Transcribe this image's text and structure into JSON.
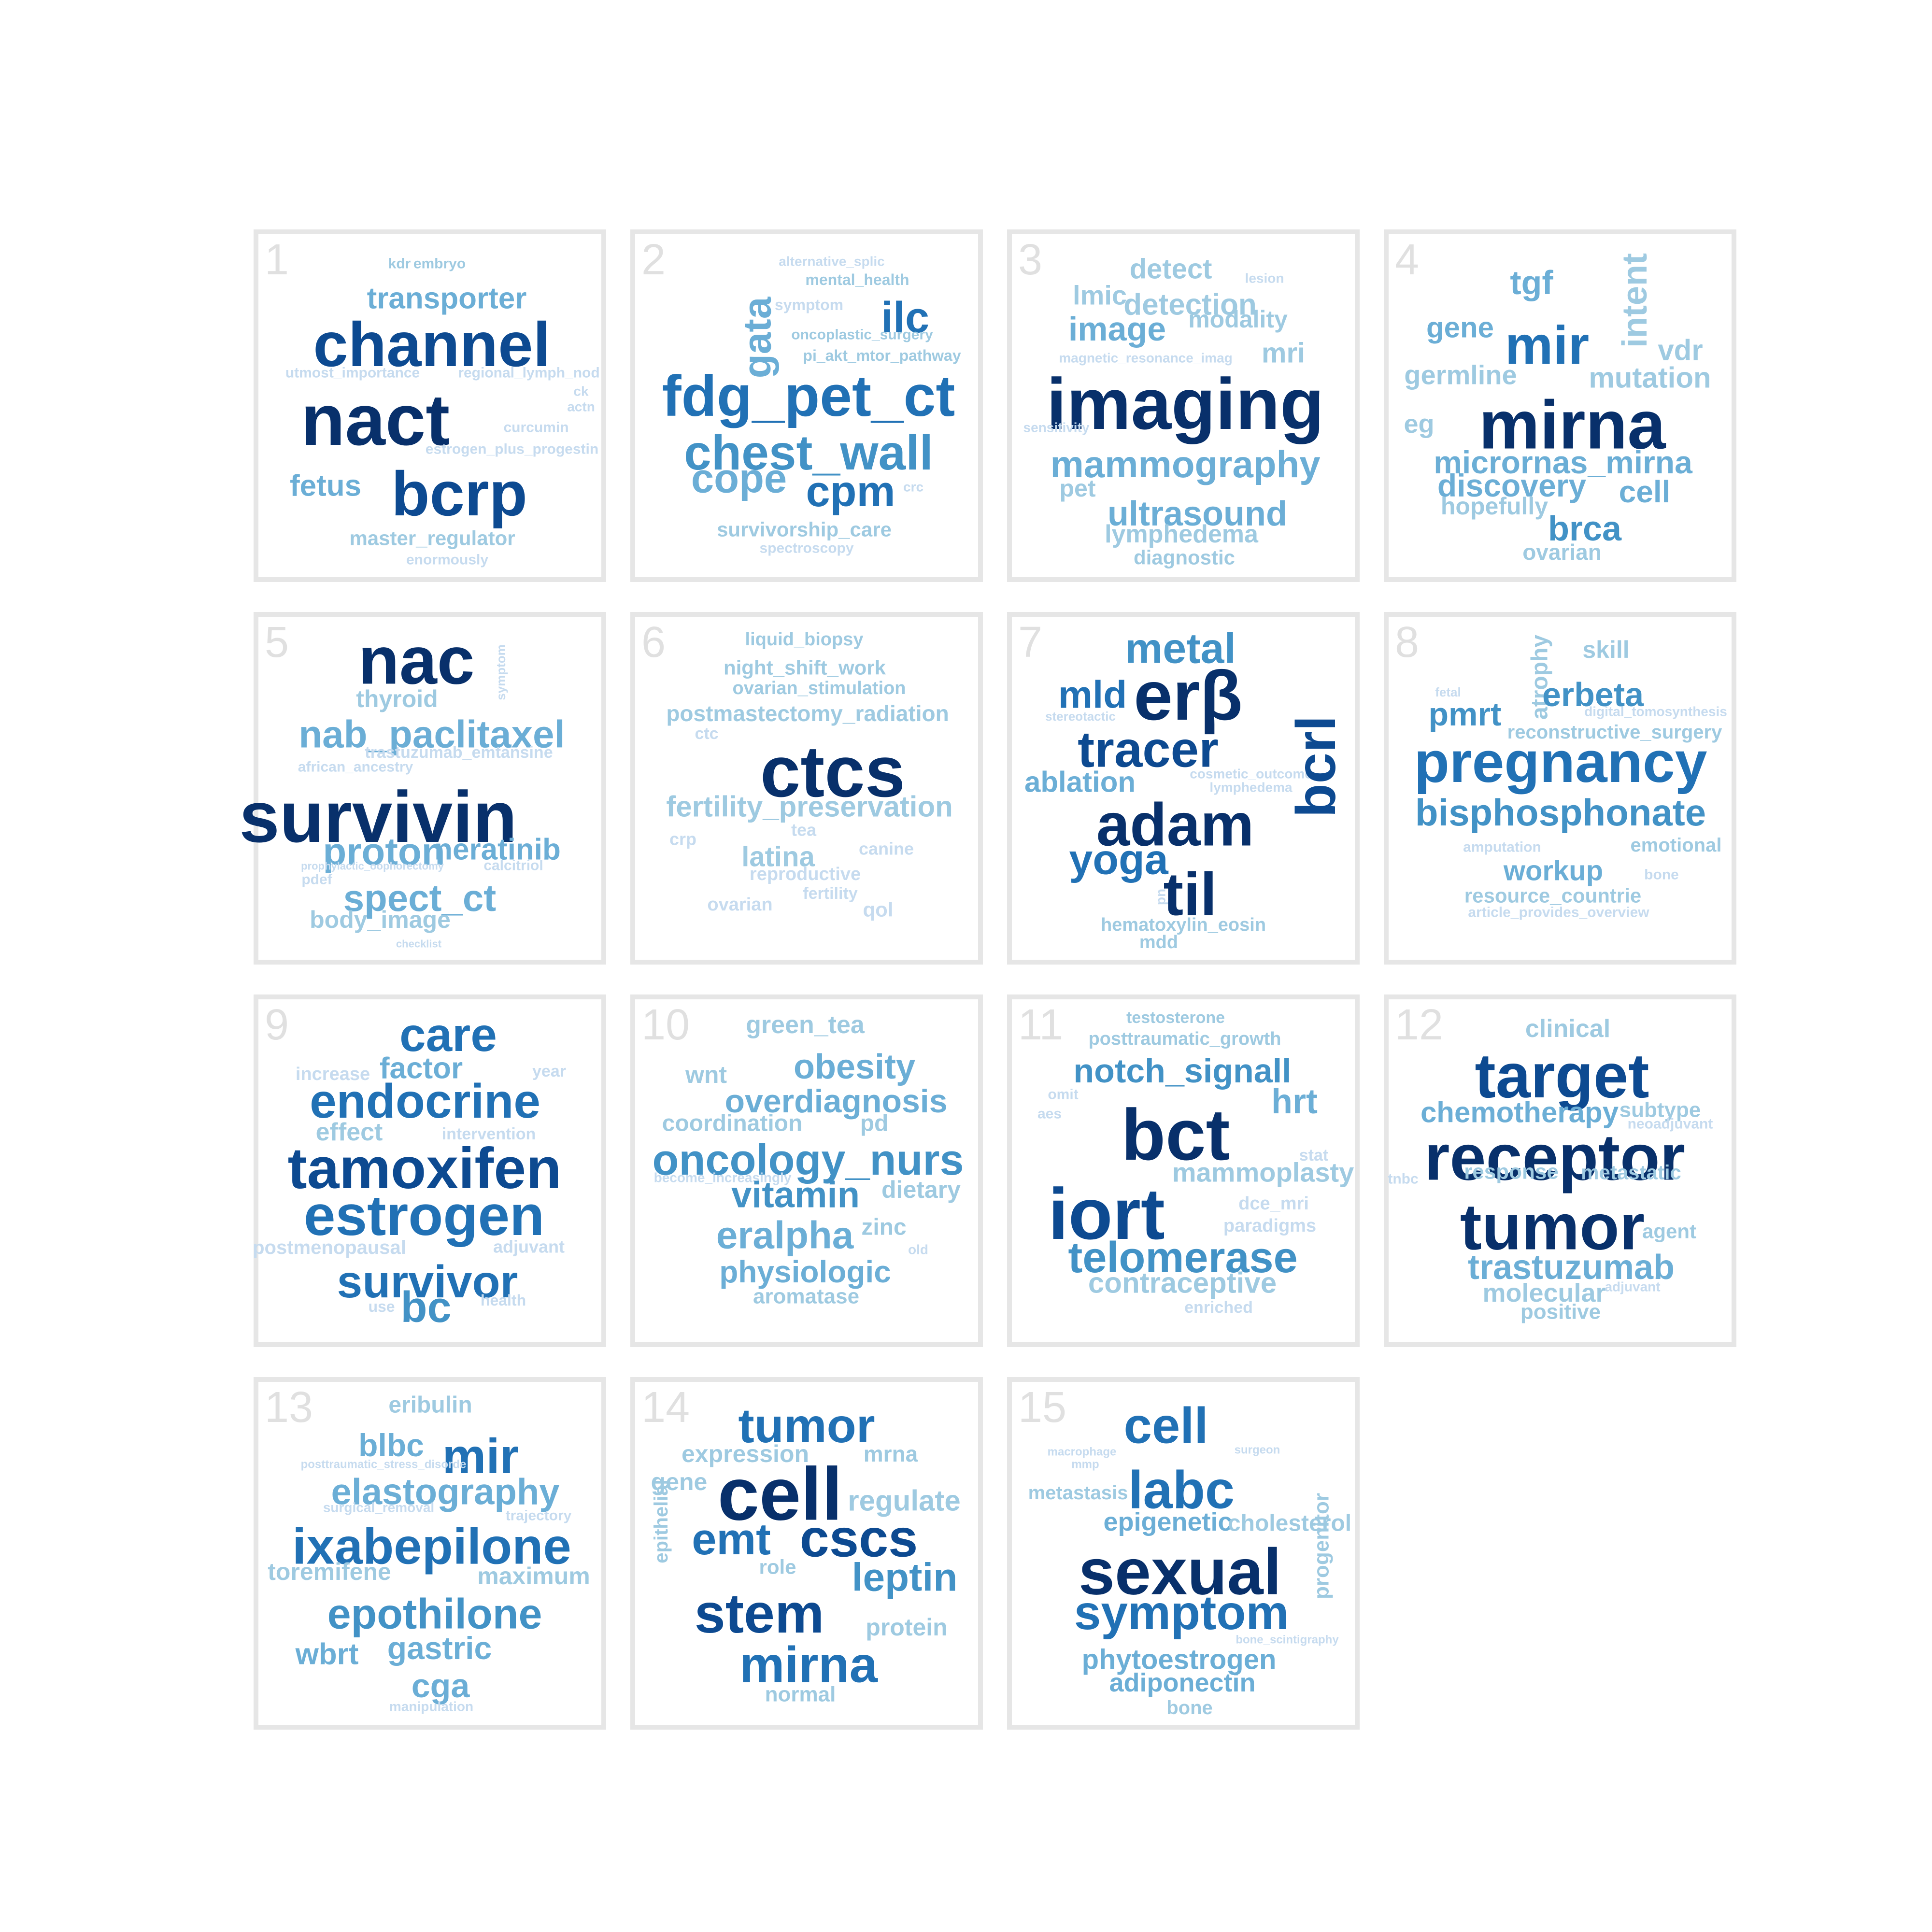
{
  "colors": {
    "c1": "#08306b",
    "c2": "#0d4a91",
    "c3": "#2171b5",
    "c4": "#4292c6",
    "c5": "#6baed6",
    "c6": "#9ecae1",
    "c7": "#c6dbef"
  },
  "panels": [
    {
      "label": "1",
      "words": [
        {
          "text": "kdr",
          "c": "c6"
        },
        {
          "text": "embryo",
          "c": "c6"
        },
        {
          "text": "transporter",
          "c": "c5"
        },
        {
          "text": "channel",
          "c": "c2"
        },
        {
          "text": "utmost_importance",
          "c": "c7"
        },
        {
          "text": "regional_lymph_nod",
          "c": "c7"
        },
        {
          "text": "nact",
          "c": "c1"
        },
        {
          "text": "ck",
          "c": "c7"
        },
        {
          "text": "actn",
          "c": "c7"
        },
        {
          "text": "curcumin",
          "c": "c7"
        },
        {
          "text": "estrogen_plus_progestin",
          "c": "c7"
        },
        {
          "text": "fetus",
          "c": "c5"
        },
        {
          "text": "bcrp",
          "c": "c2"
        },
        {
          "text": "master_regulator",
          "c": "c6"
        },
        {
          "text": "enormously",
          "c": "c7"
        }
      ]
    },
    {
      "label": "2",
      "words": [
        {
          "text": "gata",
          "c": "c5"
        },
        {
          "text": "alternative_splic",
          "c": "c7"
        },
        {
          "text": "mental_health",
          "c": "c6"
        },
        {
          "text": "ilc",
          "c": "c3"
        },
        {
          "text": "symptom",
          "c": "c7"
        },
        {
          "text": "oncoplastic_surgery",
          "c": "c6"
        },
        {
          "text": "pi_akt_mtor_pathway",
          "c": "c6"
        },
        {
          "text": "fdg_pet_ct",
          "c": "c3"
        },
        {
          "text": "chest_wall",
          "c": "c4"
        },
        {
          "text": "cope",
          "c": "c5"
        },
        {
          "text": "cpm",
          "c": "c3"
        },
        {
          "text": "crc",
          "c": "c7"
        },
        {
          "text": "survivorship_care",
          "c": "c6"
        },
        {
          "text": "spectroscopy",
          "c": "c7"
        }
      ]
    },
    {
      "label": "3",
      "words": [
        {
          "text": "detect",
          "c": "c6"
        },
        {
          "text": "lesion",
          "c": "c7"
        },
        {
          "text": "lmic",
          "c": "c6"
        },
        {
          "text": "detection",
          "c": "c6"
        },
        {
          "text": "image",
          "c": "c5"
        },
        {
          "text": "modality",
          "c": "c6"
        },
        {
          "text": "mri",
          "c": "c6"
        },
        {
          "text": "magnetic_resonance_imag",
          "c": "c7"
        },
        {
          "text": "imaging",
          "c": "c1"
        },
        {
          "text": "sensitivity",
          "c": "c7"
        },
        {
          "text": "mammography",
          "c": "c5"
        },
        {
          "text": "pet",
          "c": "c6"
        },
        {
          "text": "ultrasound",
          "c": "c5"
        },
        {
          "text": "lymphedema",
          "c": "c6"
        },
        {
          "text": "diagnostic",
          "c": "c6"
        }
      ]
    },
    {
      "label": "4",
      "words": [
        {
          "text": "tgf",
          "c": "c5"
        },
        {
          "text": "intent",
          "c": "c6"
        },
        {
          "text": "gene",
          "c": "c5"
        },
        {
          "text": "mir",
          "c": "c3"
        },
        {
          "text": "vdr",
          "c": "c6"
        },
        {
          "text": "germline",
          "c": "c6"
        },
        {
          "text": "mutation",
          "c": "c6"
        },
        {
          "text": "eg",
          "c": "c6"
        },
        {
          "text": "mirna",
          "c": "c1"
        },
        {
          "text": "micrornas_mirna",
          "c": "c5"
        },
        {
          "text": "discovery",
          "c": "c5"
        },
        {
          "text": "cell",
          "c": "c5"
        },
        {
          "text": "hopefully",
          "c": "c6"
        },
        {
          "text": "brca",
          "c": "c4"
        },
        {
          "text": "ovarian",
          "c": "c6"
        }
      ]
    },
    {
      "label": "5",
      "words": [
        {
          "text": "nac",
          "c": "c1"
        },
        {
          "text": "symptom",
          "c": "c7"
        },
        {
          "text": "thyroid",
          "c": "c6"
        },
        {
          "text": "nab_paclitaxel",
          "c": "c5"
        },
        {
          "text": "trastuzumab_emtansine",
          "c": "c7"
        },
        {
          "text": "african_ancestry",
          "c": "c7"
        },
        {
          "text": "survivin",
          "c": "c1"
        },
        {
          "text": "proton",
          "c": "c5"
        },
        {
          "text": "neratinib",
          "c": "c5"
        },
        {
          "text": "prophylactic_oophorectomy",
          "c": "c7"
        },
        {
          "text": "calcitriol",
          "c": "c7"
        },
        {
          "text": "pdef",
          "c": "c7"
        },
        {
          "text": "spect_ct",
          "c": "c5"
        },
        {
          "text": "body_image",
          "c": "c6"
        },
        {
          "text": "checklist",
          "c": "c7"
        }
      ]
    },
    {
      "label": "6",
      "words": [
        {
          "text": "liquid_biopsy",
          "c": "c6"
        },
        {
          "text": "night_shift_work",
          "c": "c6"
        },
        {
          "text": "ovarian_stimulation",
          "c": "c6"
        },
        {
          "text": "postmastectomy_radiation",
          "c": "c6"
        },
        {
          "text": "ctc",
          "c": "c7"
        },
        {
          "text": "ctcs",
          "c": "c1"
        },
        {
          "text": "fertility_preservation",
          "c": "c6"
        },
        {
          "text": "tea",
          "c": "c7"
        },
        {
          "text": "crp",
          "c": "c7"
        },
        {
          "text": "latina",
          "c": "c6"
        },
        {
          "text": "canine",
          "c": "c7"
        },
        {
          "text": "reproductive",
          "c": "c7"
        },
        {
          "text": "fertility",
          "c": "c7"
        },
        {
          "text": "ovarian",
          "c": "c7"
        },
        {
          "text": "qol",
          "c": "c7"
        }
      ]
    },
    {
      "label": "7",
      "words": [
        {
          "text": "metal",
          "c": "c4"
        },
        {
          "text": "mld",
          "c": "c3"
        },
        {
          "text": "erβ",
          "c": "c1"
        },
        {
          "text": "stereotactic",
          "c": "c7"
        },
        {
          "text": "tracer",
          "c": "c2"
        },
        {
          "text": "ablation",
          "c": "c5"
        },
        {
          "text": "cosmetic_outcome",
          "c": "c7"
        },
        {
          "text": "lymphedema",
          "c": "c7"
        },
        {
          "text": "bcrl",
          "c": "c2"
        },
        {
          "text": "adam",
          "c": "c1"
        },
        {
          "text": "yoga",
          "c": "c3"
        },
        {
          "text": "pn",
          "c": "c7"
        },
        {
          "text": "til",
          "c": "c1"
        },
        {
          "text": "hematoxylin_eosin",
          "c": "c6"
        },
        {
          "text": "mdd",
          "c": "c6"
        }
      ]
    },
    {
      "label": "8",
      "words": [
        {
          "text": "atrophy",
          "c": "c6"
        },
        {
          "text": "skill",
          "c": "c6"
        },
        {
          "text": "fetal",
          "c": "c7"
        },
        {
          "text": "erbeta",
          "c": "c4"
        },
        {
          "text": "pmrt",
          "c": "c4"
        },
        {
          "text": "digital_tomosynthesis",
          "c": "c7"
        },
        {
          "text": "reconstructive_surgery",
          "c": "c6"
        },
        {
          "text": "pregnancy",
          "c": "c3"
        },
        {
          "text": "bisphosphonate",
          "c": "c4"
        },
        {
          "text": "amputation",
          "c": "c7"
        },
        {
          "text": "emotional",
          "c": "c6"
        },
        {
          "text": "workup",
          "c": "c5"
        },
        {
          "text": "bone",
          "c": "c7"
        },
        {
          "text": "resource_countrie",
          "c": "c6"
        },
        {
          "text": "article_provides_overview",
          "c": "c7"
        }
      ]
    },
    {
      "label": "9",
      "words": [
        {
          "text": "care",
          "c": "c3"
        },
        {
          "text": "increase",
          "c": "c7"
        },
        {
          "text": "factor",
          "c": "c5"
        },
        {
          "text": "year",
          "c": "c7"
        },
        {
          "text": "endocrine",
          "c": "c3"
        },
        {
          "text": "effect",
          "c": "c6"
        },
        {
          "text": "intervention",
          "c": "c7"
        },
        {
          "text": "tamoxifen",
          "c": "c2"
        },
        {
          "text": "estrogen",
          "c": "c3"
        },
        {
          "text": "postmenopausal",
          "c": "c7"
        },
        {
          "text": "adjuvant",
          "c": "c7"
        },
        {
          "text": "survivor",
          "c": "c3"
        },
        {
          "text": "use",
          "c": "c7"
        },
        {
          "text": "bc",
          "c": "c4"
        },
        {
          "text": "health",
          "c": "c7"
        }
      ]
    },
    {
      "label": "10",
      "words": [
        {
          "text": "green_tea",
          "c": "c6"
        },
        {
          "text": "wnt",
          "c": "c6"
        },
        {
          "text": "obesity",
          "c": "c5"
        },
        {
          "text": "overdiagnosis",
          "c": "c5"
        },
        {
          "text": "coordination",
          "c": "c6"
        },
        {
          "text": "pd",
          "c": "c6"
        },
        {
          "text": "oncology_nurs",
          "c": "c4"
        },
        {
          "text": "become_increasingly",
          "c": "c7"
        },
        {
          "text": "vitamin",
          "c": "c4"
        },
        {
          "text": "dietary",
          "c": "c6"
        },
        {
          "text": "eralpha",
          "c": "c5"
        },
        {
          "text": "zinc",
          "c": "c6"
        },
        {
          "text": "old",
          "c": "c7"
        },
        {
          "text": "physiologic",
          "c": "c5"
        },
        {
          "text": "aromatase",
          "c": "c6"
        }
      ]
    },
    {
      "label": "11",
      "words": [
        {
          "text": "testosterone",
          "c": "c6"
        },
        {
          "text": "posttraumatic_growth",
          "c": "c6"
        },
        {
          "text": "notch_signall",
          "c": "c4"
        },
        {
          "text": "omit",
          "c": "c7"
        },
        {
          "text": "hrt",
          "c": "c5"
        },
        {
          "text": "aes",
          "c": "c7"
        },
        {
          "text": "bct",
          "c": "c1"
        },
        {
          "text": "stat",
          "c": "c7"
        },
        {
          "text": "mammoplasty",
          "c": "c6"
        },
        {
          "text": "iort",
          "c": "c2"
        },
        {
          "text": "dce_mri",
          "c": "c7"
        },
        {
          "text": "paradigms",
          "c": "c7"
        },
        {
          "text": "telomerase",
          "c": "c4"
        },
        {
          "text": "contraceptive",
          "c": "c6"
        },
        {
          "text": "enriched",
          "c": "c7"
        }
      ]
    },
    {
      "label": "12",
      "words": [
        {
          "text": "clinical",
          "c": "c6"
        },
        {
          "text": "target",
          "c": "c2"
        },
        {
          "text": "chemotherapy",
          "c": "c5"
        },
        {
          "text": "subtype",
          "c": "c6"
        },
        {
          "text": "neoadjuvant",
          "c": "c7"
        },
        {
          "text": "receptor",
          "c": "c1"
        },
        {
          "text": "tnbc",
          "c": "c7"
        },
        {
          "text": "response",
          "c": "c6"
        },
        {
          "text": "metastatic",
          "c": "c6"
        },
        {
          "text": "tumor",
          "c": "c1"
        },
        {
          "text": "agent",
          "c": "c6"
        },
        {
          "text": "trastuzumab",
          "c": "c5"
        },
        {
          "text": "molecular",
          "c": "c6"
        },
        {
          "text": "adjuvant",
          "c": "c7"
        },
        {
          "text": "positive",
          "c": "c6"
        }
      ]
    },
    {
      "label": "13",
      "words": [
        {
          "text": "eribulin",
          "c": "c6"
        },
        {
          "text": "blbc",
          "c": "c5"
        },
        {
          "text": "mir",
          "c": "c3"
        },
        {
          "text": "posttraumatic_stress_disorde",
          "c": "c7"
        },
        {
          "text": "elastography",
          "c": "c5"
        },
        {
          "text": "surgical_removal",
          "c": "c7"
        },
        {
          "text": "trajectory",
          "c": "c7"
        },
        {
          "text": "ixabepilone",
          "c": "c3"
        },
        {
          "text": "toremifene",
          "c": "c6"
        },
        {
          "text": "maximum",
          "c": "c6"
        },
        {
          "text": "epothilone",
          "c": "c4"
        },
        {
          "text": "wbrt",
          "c": "c5"
        },
        {
          "text": "gastric",
          "c": "c5"
        },
        {
          "text": "cga",
          "c": "c5"
        },
        {
          "text": "manipulation",
          "c": "c7"
        }
      ]
    },
    {
      "label": "14",
      "words": [
        {
          "text": "tumor",
          "c": "c3"
        },
        {
          "text": "expression",
          "c": "c6"
        },
        {
          "text": "mrna",
          "c": "c6"
        },
        {
          "text": "gene",
          "c": "c6"
        },
        {
          "text": "cell",
          "c": "c1"
        },
        {
          "text": "regulate",
          "c": "c6"
        },
        {
          "text": "epithelial",
          "c": "c6"
        },
        {
          "text": "emt",
          "c": "c3"
        },
        {
          "text": "cscs",
          "c": "c2"
        },
        {
          "text": "role",
          "c": "c6"
        },
        {
          "text": "leptin",
          "c": "c4"
        },
        {
          "text": "stem",
          "c": "c2"
        },
        {
          "text": "protein",
          "c": "c6"
        },
        {
          "text": "mirna",
          "c": "c3"
        },
        {
          "text": "normal",
          "c": "c6"
        }
      ]
    },
    {
      "label": "15",
      "words": [
        {
          "text": "cell",
          "c": "c3"
        },
        {
          "text": "macrophage",
          "c": "c7"
        },
        {
          "text": "surgeon",
          "c": "c7"
        },
        {
          "text": "mmp",
          "c": "c7"
        },
        {
          "text": "labc",
          "c": "c3"
        },
        {
          "text": "metastasis",
          "c": "c6"
        },
        {
          "text": "epigenetic",
          "c": "c5"
        },
        {
          "text": "cholesterol",
          "c": "c6"
        },
        {
          "text": "progenitor",
          "c": "c6"
        },
        {
          "text": "sexual",
          "c": "c1"
        },
        {
          "text": "symptom",
          "c": "c3"
        },
        {
          "text": "bone_scintigraphy",
          "c": "c7"
        },
        {
          "text": "phytoestrogen",
          "c": "c5"
        },
        {
          "text": "adiponectin",
          "c": "c5"
        },
        {
          "text": "bone",
          "c": "c6"
        }
      ]
    }
  ]
}
